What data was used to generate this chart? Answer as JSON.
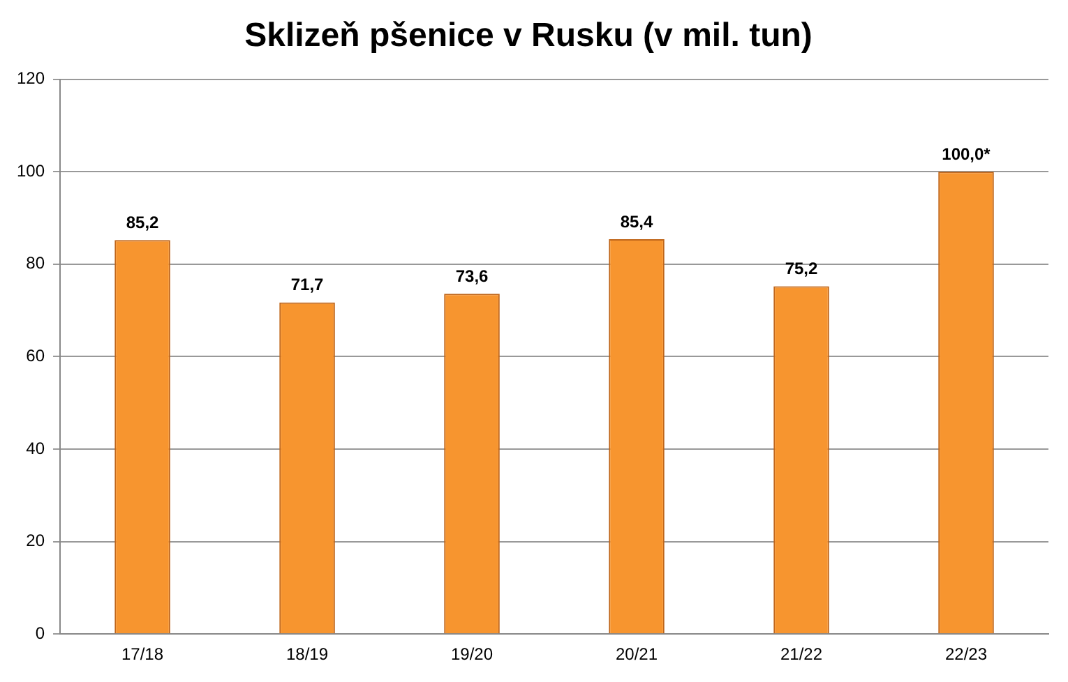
{
  "chart_data": {
    "type": "bar",
    "title": "Sklizeň pšenice v Rusku (v mil. tun)",
    "categories": [
      "17/18",
      "18/19",
      "19/20",
      "20/21",
      "21/22",
      "22/23"
    ],
    "values": [
      85.2,
      71.7,
      73.6,
      85.4,
      75.2,
      100.0
    ],
    "value_labels": [
      "85,2",
      "71,7",
      "73,6",
      "85,4",
      "75,2",
      "100,0*"
    ],
    "color": "#f7952f",
    "ylim": [
      0,
      120
    ],
    "yticks": [
      0,
      20,
      40,
      60,
      80,
      100,
      120
    ],
    "grid": "y",
    "legend": false
  }
}
